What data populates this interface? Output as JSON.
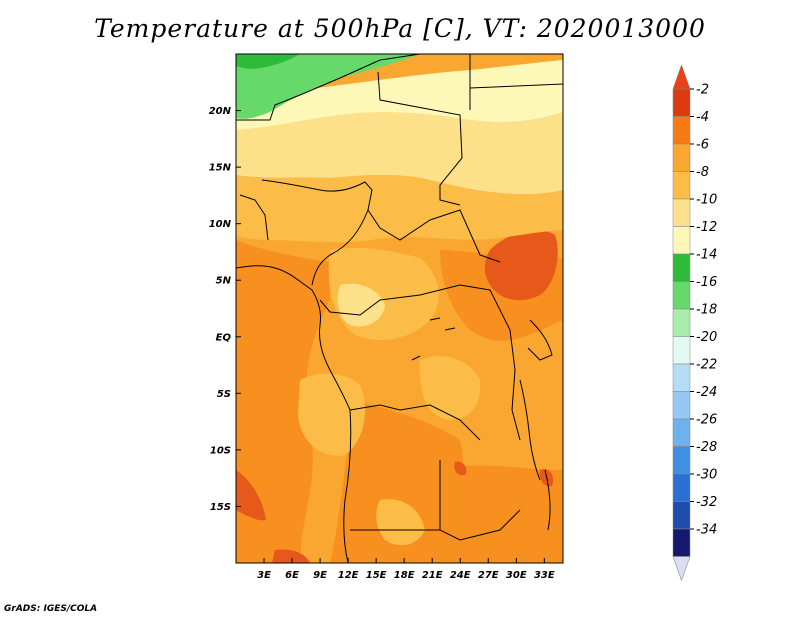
{
  "title": "Temperature at 500hPa [C], VT: 2020013000",
  "credit": "GrADS: IGES/COLA",
  "map": {
    "lon_range": [
      0,
      35
    ],
    "lat_range": [
      -20,
      25
    ],
    "x_ticks": [
      {
        "lon": 3,
        "label": "3E"
      },
      {
        "lon": 6,
        "label": "6E"
      },
      {
        "lon": 9,
        "label": "9E"
      },
      {
        "lon": 12,
        "label": "12E"
      },
      {
        "lon": 15,
        "label": "15E"
      },
      {
        "lon": 18,
        "label": "18E"
      },
      {
        "lon": 21,
        "label": "21E"
      },
      {
        "lon": 24,
        "label": "24E"
      },
      {
        "lon": 27,
        "label": "27E"
      },
      {
        "lon": 30,
        "label": "30E"
      },
      {
        "lon": 33,
        "label": "33E"
      }
    ],
    "y_ticks": [
      {
        "lat": 20,
        "label": "20N"
      },
      {
        "lat": 15,
        "label": "15N"
      },
      {
        "lat": 10,
        "label": "10N"
      },
      {
        "lat": 5,
        "label": "5N"
      },
      {
        "lat": 0,
        "label": "EQ"
      },
      {
        "lat": -5,
        "label": "5S"
      },
      {
        "lat": -10,
        "label": "10S"
      },
      {
        "lat": -15,
        "label": "15S"
      }
    ]
  },
  "colorbar": {
    "orientation": "vertical",
    "placement": "right",
    "bins": [
      {
        "value": -2,
        "color": "#dd3a10"
      },
      {
        "value": -4,
        "color": "#f57c14"
      },
      {
        "value": -6,
        "color": "#f9a730"
      },
      {
        "value": -8,
        "color": "#fbbd48"
      },
      {
        "value": -10,
        "color": "#fde08a"
      },
      {
        "value": -12,
        "color": "#fef8b8"
      },
      {
        "value": -14,
        "color": "#2fbb3a"
      },
      {
        "value": -16,
        "color": "#67d86a"
      },
      {
        "value": -18,
        "color": "#a9ecab"
      },
      {
        "value": -20,
        "color": "#e2f9f4"
      },
      {
        "value": -22,
        "color": "#b6dcf6"
      },
      {
        "value": -24,
        "color": "#96c8f3"
      },
      {
        "value": -26,
        "color": "#6eb1ef"
      },
      {
        "value": -28,
        "color": "#3f8fe3"
      },
      {
        "value": -30,
        "color": "#2a6fd2"
      },
      {
        "value": -32,
        "color": "#1e4cad"
      },
      {
        "value": -34,
        "color": "#15186e"
      },
      {
        "value": null,
        "color": "#dcdcf5"
      }
    ],
    "top_arrow_color": "#ec4016",
    "bottom_arrow_color": "#dcdcf5"
  }
}
